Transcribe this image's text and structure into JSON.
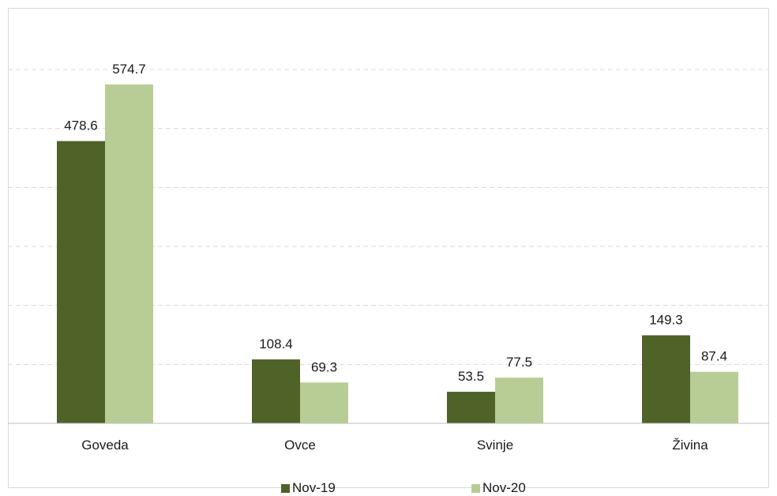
{
  "chart_data": {
    "type": "bar",
    "categories": [
      "Goveda",
      "Ovce",
      "Svinje",
      "Živina"
    ],
    "series": [
      {
        "name": "Nov-19",
        "values": [
          478.6,
          108.4,
          53.5,
          149.3
        ],
        "color": "#4f6228"
      },
      {
        "name": "Nov-20",
        "values": [
          574.7,
          69.3,
          77.5,
          87.4
        ],
        "color": "#b8cd96"
      }
    ],
    "ylim": [
      0,
      600
    ],
    "gridlines": [
      100,
      200,
      300,
      400,
      500,
      600
    ],
    "grid": true,
    "legend": "bottom"
  }
}
